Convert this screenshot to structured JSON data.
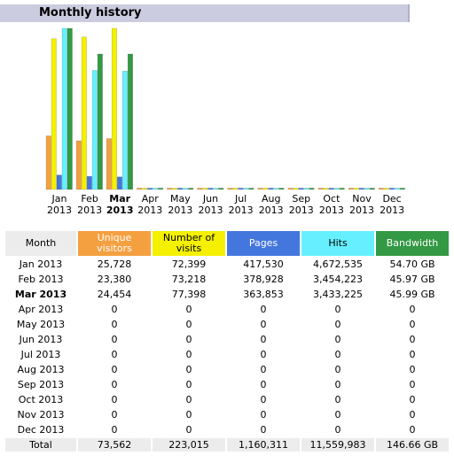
{
  "section_title": "Monthly history",
  "colors": {
    "unique_visitors": "#f4a040",
    "visits": "#f4f000",
    "pages": "#4477dd",
    "hits": "#66f0ff",
    "bandwidth": "#339944"
  },
  "chart_data": {
    "type": "bar",
    "categories": [
      [
        "Jan",
        "2013"
      ],
      [
        "Feb",
        "2013"
      ],
      [
        "Mar",
        "2013"
      ],
      [
        "Apr",
        "2013"
      ],
      [
        "May",
        "2013"
      ],
      [
        "Jun",
        "2013"
      ],
      [
        "Jul",
        "2013"
      ],
      [
        "Aug",
        "2013"
      ],
      [
        "Sep",
        "2013"
      ],
      [
        "Oct",
        "2013"
      ],
      [
        "Nov",
        "2013"
      ],
      [
        "Dec",
        "2013"
      ]
    ],
    "current_index": 2,
    "series": [
      {
        "key": "unique_visitors",
        "values": [
          25728,
          23380,
          24454,
          0,
          0,
          0,
          0,
          0,
          0,
          0,
          0,
          0
        ]
      },
      {
        "key": "visits",
        "values": [
          72399,
          73218,
          77398,
          0,
          0,
          0,
          0,
          0,
          0,
          0,
          0,
          0
        ]
      },
      {
        "key": "pages",
        "values": [
          417530,
          378928,
          363853,
          0,
          0,
          0,
          0,
          0,
          0,
          0,
          0,
          0
        ]
      },
      {
        "key": "hits",
        "values": [
          4672535,
          3454223,
          3433225,
          0,
          0,
          0,
          0,
          0,
          0,
          0,
          0,
          0
        ]
      },
      {
        "key": "bandwidth_gb",
        "values": [
          54.7,
          45.97,
          45.99,
          0,
          0,
          0,
          0,
          0,
          0,
          0,
          0,
          0
        ]
      }
    ]
  },
  "table": {
    "headers": {
      "month": "Month",
      "unique_visitors": [
        "Unique",
        "visitors"
      ],
      "visits": [
        "Number of",
        "visits"
      ],
      "pages": "Pages",
      "hits": "Hits",
      "bandwidth": "Bandwidth"
    },
    "rows": [
      {
        "month": "Jan 2013",
        "unique": "25,728",
        "visits": "72,399",
        "pages": "417,530",
        "hits": "4,672,535",
        "bandwidth": "54.70 GB"
      },
      {
        "month": "Feb 2013",
        "unique": "23,380",
        "visits": "73,218",
        "pages": "378,928",
        "hits": "3,454,223",
        "bandwidth": "45.97 GB"
      },
      {
        "month": "Mar 2013",
        "unique": "24,454",
        "visits": "77,398",
        "pages": "363,853",
        "hits": "3,433,225",
        "bandwidth": "45.99 GB"
      },
      {
        "month": "Apr 2013",
        "unique": "0",
        "visits": "0",
        "pages": "0",
        "hits": "0",
        "bandwidth": "0"
      },
      {
        "month": "May 2013",
        "unique": "0",
        "visits": "0",
        "pages": "0",
        "hits": "0",
        "bandwidth": "0"
      },
      {
        "month": "Jun 2013",
        "unique": "0",
        "visits": "0",
        "pages": "0",
        "hits": "0",
        "bandwidth": "0"
      },
      {
        "month": "Jul 2013",
        "unique": "0",
        "visits": "0",
        "pages": "0",
        "hits": "0",
        "bandwidth": "0"
      },
      {
        "month": "Aug 2013",
        "unique": "0",
        "visits": "0",
        "pages": "0",
        "hits": "0",
        "bandwidth": "0"
      },
      {
        "month": "Sep 2013",
        "unique": "0",
        "visits": "0",
        "pages": "0",
        "hits": "0",
        "bandwidth": "0"
      },
      {
        "month": "Oct 2013",
        "unique": "0",
        "visits": "0",
        "pages": "0",
        "hits": "0",
        "bandwidth": "0"
      },
      {
        "month": "Nov 2013",
        "unique": "0",
        "visits": "0",
        "pages": "0",
        "hits": "0",
        "bandwidth": "0"
      },
      {
        "month": "Dec 2013",
        "unique": "0",
        "visits": "0",
        "pages": "0",
        "hits": "0",
        "bandwidth": "0"
      }
    ],
    "current_row": 2,
    "total": {
      "month": "Total",
      "unique": "73,562",
      "visits": "223,015",
      "pages": "1,160,311",
      "hits": "11,559,983",
      "bandwidth": "146.66 GB"
    }
  }
}
